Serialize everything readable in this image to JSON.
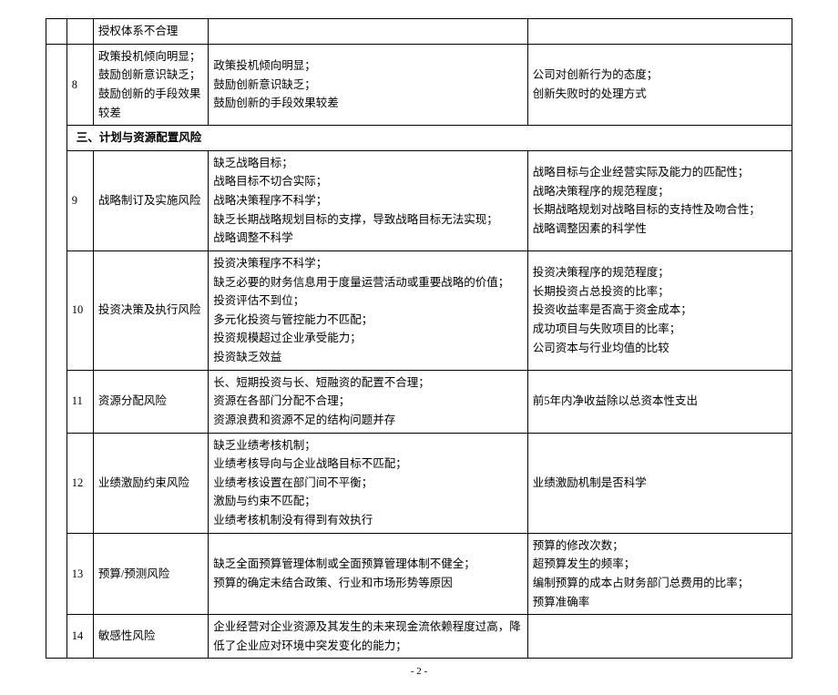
{
  "rows": {
    "truncated_top": {
      "c2": "授权体系不合理"
    },
    "r8": {
      "num": "8",
      "c2": "政策投机倾向明显；\n鼓励创新意识缺乏；\n鼓励创新的手段效果较差",
      "c3": "政策投机倾向明显；\n鼓励创新意识缺乏；\n鼓励创新的手段效果较差",
      "c4": "公司对创新行为的态度；\n创新失败时的处理方式"
    },
    "section3": "三、计划与资源配置风险",
    "r9": {
      "num": "9",
      "c2": "战略制订及实施风险",
      "c3": "缺乏战略目标；\n战略目标不切合实际；\n战略决策程序不科学；\n缺乏长期战略规划目标的支撑，导致战略目标无法实现；\n战略调整不科学",
      "c4": "战略目标与企业经营实际及能力的匹配性；\n战略决策程序的规范程度；\n长期战略规划对战略目标的支持性及吻合性；\n战略调整因素的科学性"
    },
    "r10": {
      "num": "10",
      "c2": "投资决策及执行风险",
      "c3": "投资决策程序不科学；\n缺乏必要的财务信息用于度量运营活动或重要战略的价值；\n投资评估不到位；\n多元化投资与管控能力不匹配；\n投资规模超过企业承受能力；\n投资缺乏效益",
      "c4": "投资决策程序的规范程度；\n长期投资占总投资的比率；\n投资收益率是否高于资金成本；\n成功项目与失败项目的比率；\n公司资本与行业均值的比较"
    },
    "r11": {
      "num": "11",
      "c2": "资源分配风险",
      "c3": "长、短期投资与长、短融资的配置不合理；\n资源在各部门分配不合理；\n资源浪费和资源不足的结构问题并存",
      "c4": "前5年内净收益除以总资本性支出"
    },
    "r12": {
      "num": "12",
      "c2": "业绩激励约束风险",
      "c3": "缺乏业绩考核机制；\n业绩考核导向与企业战略目标不匹配；\n业绩考核设置在部门间不平衡；\n激励与约束不匹配；\n业绩考核机制没有得到有效执行",
      "c4": "业绩激励机制是否科学"
    },
    "r13": {
      "num": "13",
      "c2": "预算/预测风险",
      "c3": "缺乏全面预算管理体制或全面预算管理体制不健全；\n预算的确定未结合政策、行业和市场形势等原因",
      "c4": "预算的修改次数；\n超预算发生的频率；\n编制预算的成本占财务部门总费用的比率；\n预算准确率"
    },
    "r14": {
      "num": "14",
      "c2": "敏感性风险",
      "c3": "企业经营对企业资源及其发生的未来现金流依赖程度过高，降低了企业应对环境中突发变化的能力；",
      "c4": ""
    }
  },
  "page": "- 2 -"
}
